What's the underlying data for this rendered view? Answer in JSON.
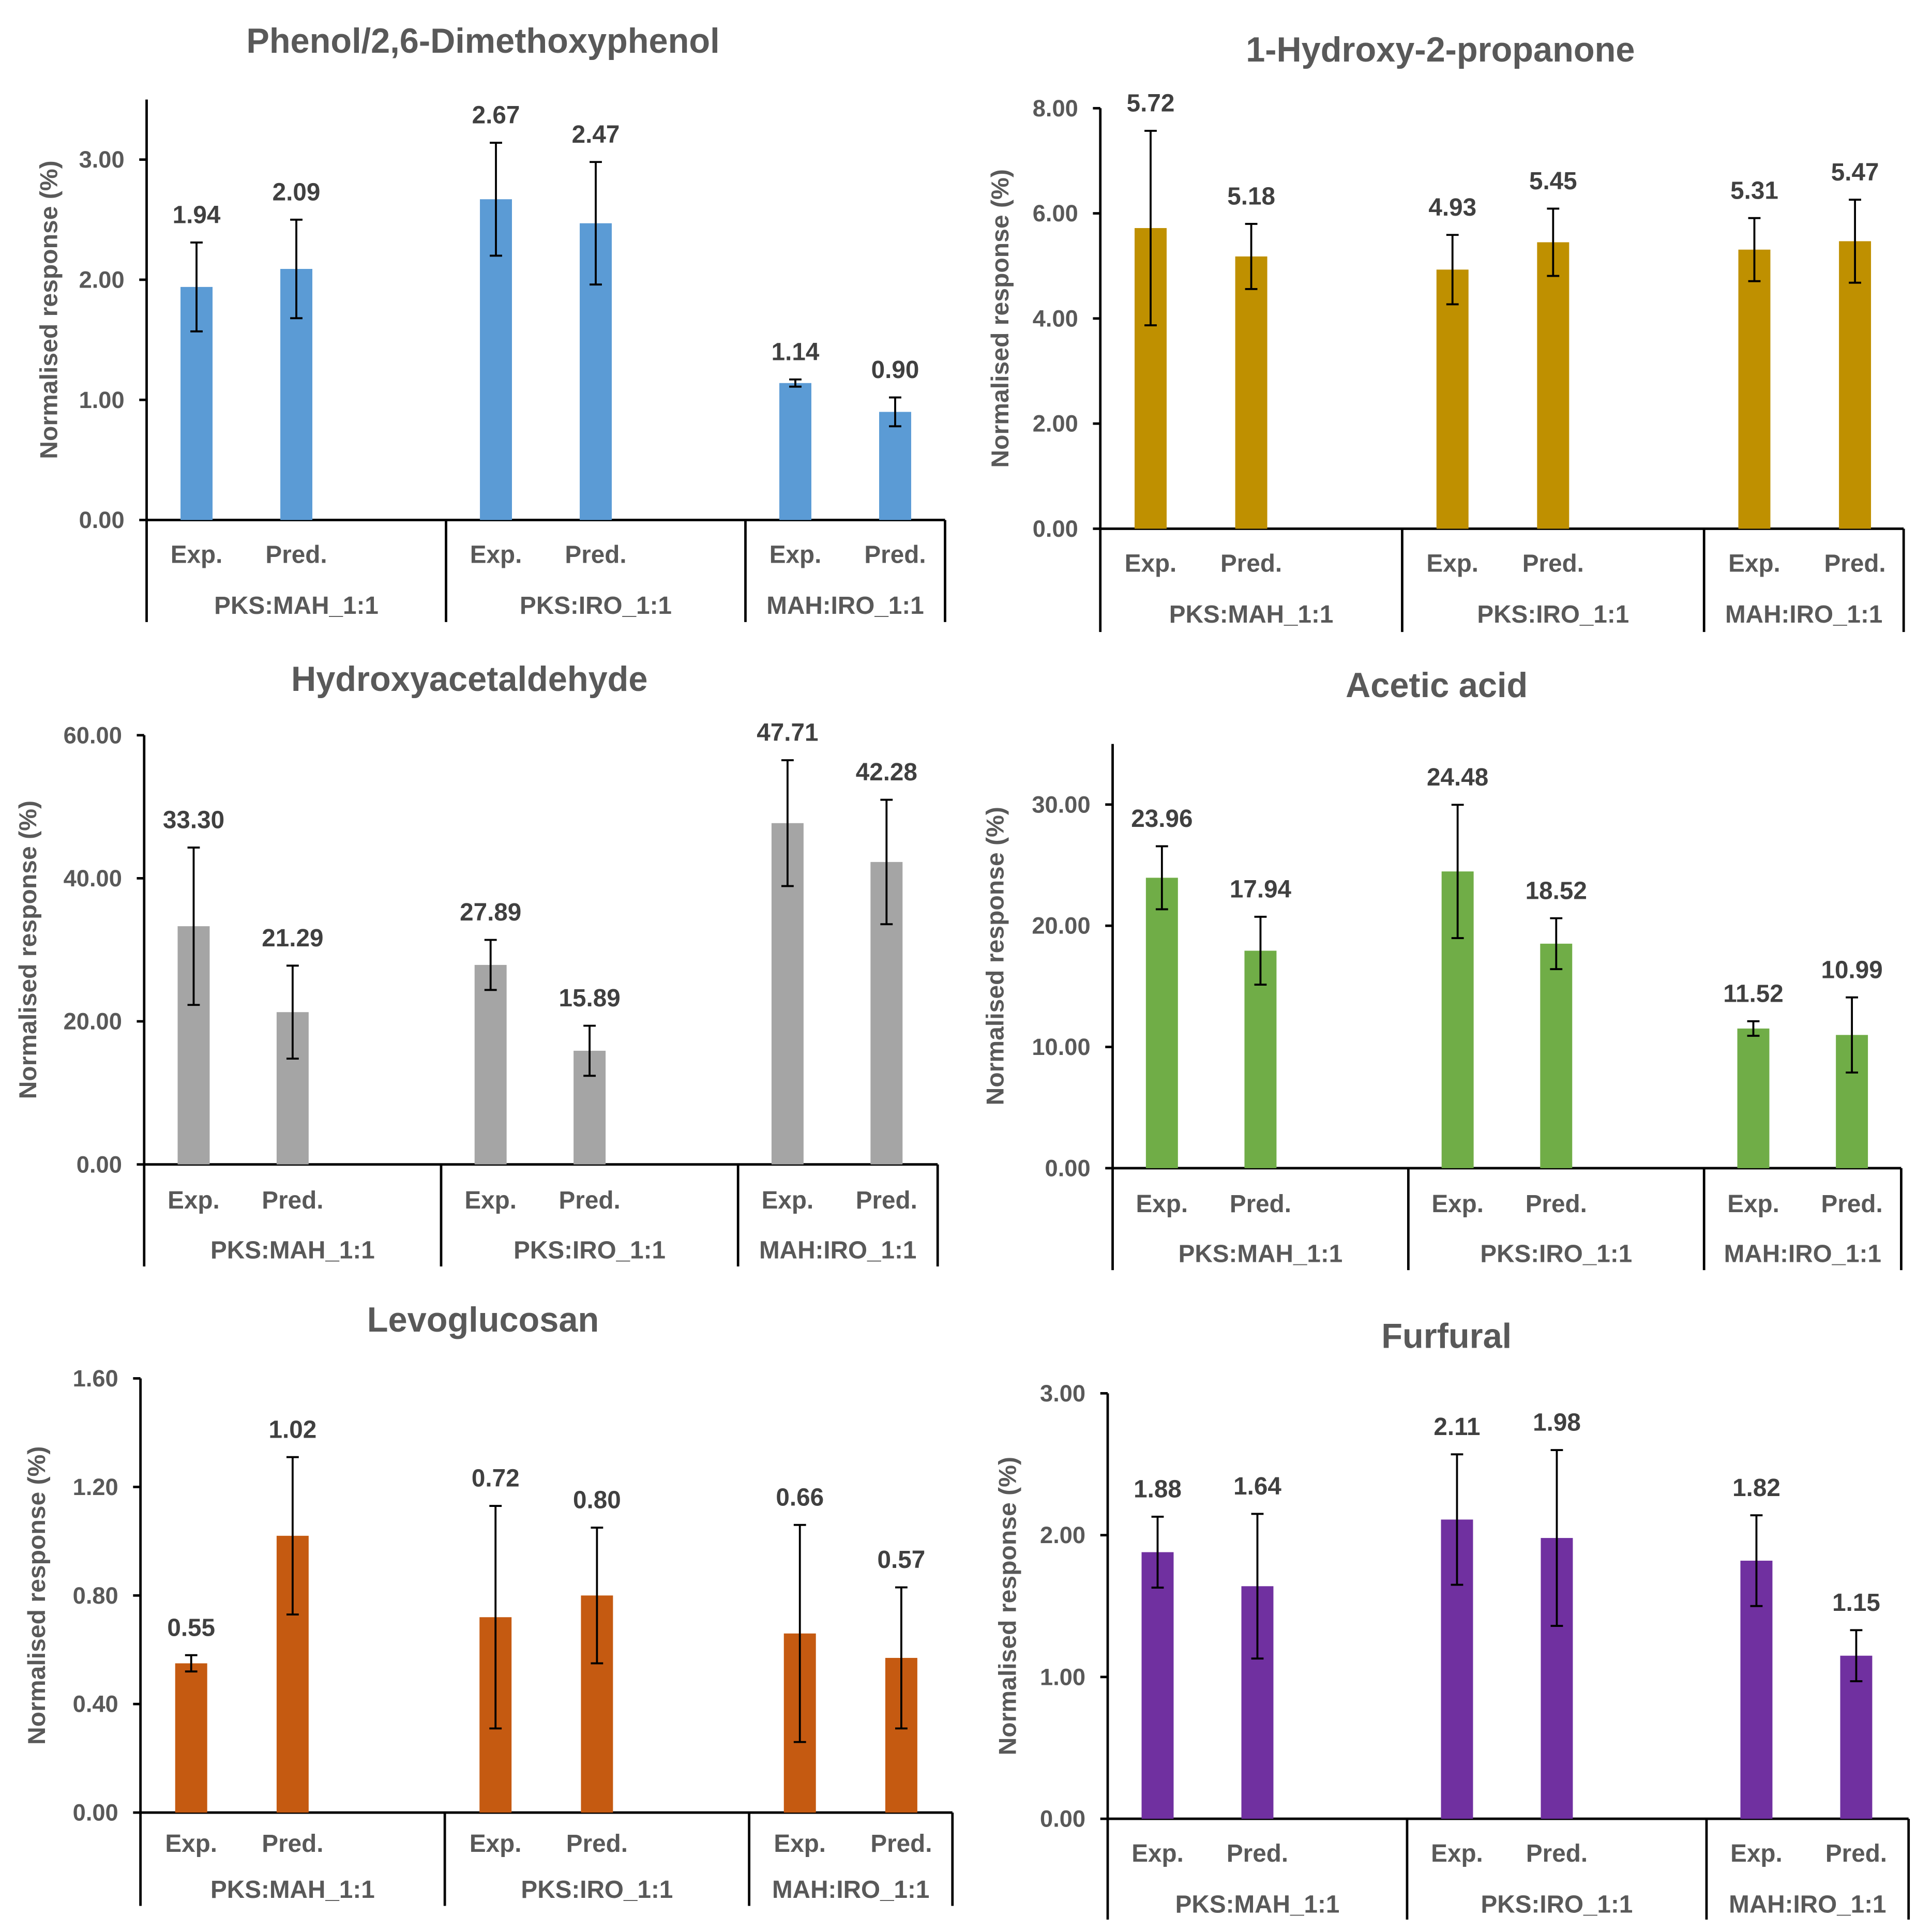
{
  "chart_data": [
    {
      "type": "bar",
      "title": "Phenol/2,6-Dimethoxyphenol",
      "xlabel": "",
      "ylabel": "Normalised response (%)",
      "ylim": [
        0,
        3.5
      ],
      "yticks": [
        "0.00",
        "1.00",
        "2.00",
        "3.00"
      ],
      "groups": [
        "PKS:MAH_1:1",
        "PKS:IRO_1:1",
        "MAH:IRO_1:1"
      ],
      "categories": [
        "Exp.",
        "Pred.",
        "Exp.",
        "Pred.",
        "Exp.",
        "Pred."
      ],
      "values": [
        1.94,
        2.09,
        2.67,
        2.47,
        1.14,
        0.9
      ],
      "errors": [
        0.37,
        0.41,
        0.47,
        0.51,
        0.03,
        0.12
      ],
      "value_labels": [
        "1.94",
        "2.09",
        "2.67",
        "2.47",
        "1.14",
        "0.90"
      ],
      "color": "#5B9BD5"
    },
    {
      "type": "bar",
      "title": "1-Hydroxy-2-propanone",
      "xlabel": "",
      "ylabel": "Normalised response (%)",
      "ylim": [
        0,
        8
      ],
      "yticks": [
        "0.00",
        "2.00",
        "4.00",
        "6.00",
        "8.00"
      ],
      "groups": [
        "PKS:MAH_1:1",
        "PKS:IRO_1:1",
        "MAH:IRO_1:1"
      ],
      "categories": [
        "Exp.",
        "Pred.",
        "Exp.",
        "Pred.",
        "Exp.",
        "Pred."
      ],
      "values": [
        5.72,
        5.18,
        4.93,
        5.45,
        5.31,
        5.47
      ],
      "errors": [
        1.85,
        0.62,
        0.66,
        0.64,
        0.6,
        0.79
      ],
      "value_labels": [
        "5.72",
        "5.18",
        "4.93",
        "5.45",
        "5.31",
        "5.47"
      ],
      "color": "#BF9000"
    },
    {
      "type": "bar",
      "title": "Hydroxyacetaldehyde",
      "xlabel": "",
      "ylabel": "Normalised response (%)",
      "ylim": [
        0,
        60
      ],
      "yticks": [
        "0.00",
        "20.00",
        "40.00",
        "60.00"
      ],
      "groups": [
        "PKS:MAH_1:1",
        "PKS:IRO_1:1",
        "MAH:IRO_1:1"
      ],
      "categories": [
        "Exp.",
        "Pred.",
        "Exp.",
        "Pred.",
        "Exp.",
        "Pred."
      ],
      "values": [
        33.3,
        21.29,
        27.89,
        15.89,
        47.71,
        42.28
      ],
      "errors": [
        11.0,
        6.5,
        3.5,
        3.5,
        8.8,
        8.7
      ],
      "value_labels": [
        "33.30",
        "21.29",
        "27.89",
        "15.89",
        "47.71",
        "42.28"
      ],
      "color": "#A5A5A5"
    },
    {
      "type": "bar",
      "title": "Acetic acid",
      "xlabel": "",
      "ylabel": "Normalised response (%)",
      "ylim": [
        0,
        35
      ],
      "yticks": [
        "0.00",
        "10.00",
        "20.00",
        "30.00"
      ],
      "groups": [
        "PKS:MAH_1:1",
        "PKS:IRO_1:1",
        "MAH:IRO_1:1"
      ],
      "categories": [
        "Exp.",
        "Pred.",
        "Exp.",
        "Pred.",
        "Exp.",
        "Pred."
      ],
      "values": [
        23.96,
        17.94,
        24.48,
        18.52,
        11.52,
        10.99
      ],
      "errors": [
        2.6,
        2.8,
        5.5,
        2.1,
        0.6,
        3.1
      ],
      "value_labels": [
        "23.96",
        "17.94",
        "24.48",
        "18.52",
        "11.52",
        "10.99"
      ],
      "color": "#70AD47"
    },
    {
      "type": "bar",
      "title": "Levoglucosan",
      "xlabel": "",
      "ylabel": "Normalised response (%)",
      "ylim": [
        0,
        1.6
      ],
      "yticks": [
        "0.00",
        "0.40",
        "0.80",
        "1.20",
        "1.60"
      ],
      "groups": [
        "PKS:MAH_1:1",
        "PKS:IRO_1:1",
        "MAH:IRO_1:1"
      ],
      "categories": [
        "Exp.",
        "Pred.",
        "Exp.",
        "Pred.",
        "Exp.",
        "Pred."
      ],
      "values": [
        0.55,
        1.02,
        0.72,
        0.8,
        0.66,
        0.57
      ],
      "errors": [
        0.03,
        0.29,
        0.41,
        0.25,
        0.4,
        0.26
      ],
      "value_labels": [
        "0.55",
        "1.02",
        "0.72",
        "0.80",
        "0.66",
        "0.57"
      ],
      "color": "#C55A11"
    },
    {
      "type": "bar",
      "title": "Furfural",
      "xlabel": "",
      "ylabel": "Normalised response (%)",
      "ylim": [
        0,
        3
      ],
      "yticks": [
        "0.00",
        "1.00",
        "2.00",
        "3.00"
      ],
      "groups": [
        "PKS:MAH_1:1",
        "PKS:IRO_1:1",
        "MAH:IRO_1:1"
      ],
      "categories": [
        "Exp.",
        "Pred.",
        "Exp.",
        "Pred.",
        "Exp.",
        "Pred."
      ],
      "values": [
        1.88,
        1.64,
        2.11,
        1.98,
        1.82,
        1.15
      ],
      "errors": [
        0.25,
        0.51,
        0.46,
        0.62,
        0.32,
        0.18
      ],
      "value_labels": [
        "1.88",
        "1.64",
        "2.11",
        "1.98",
        "1.82",
        "1.15"
      ],
      "color": "#7030A0"
    }
  ]
}
